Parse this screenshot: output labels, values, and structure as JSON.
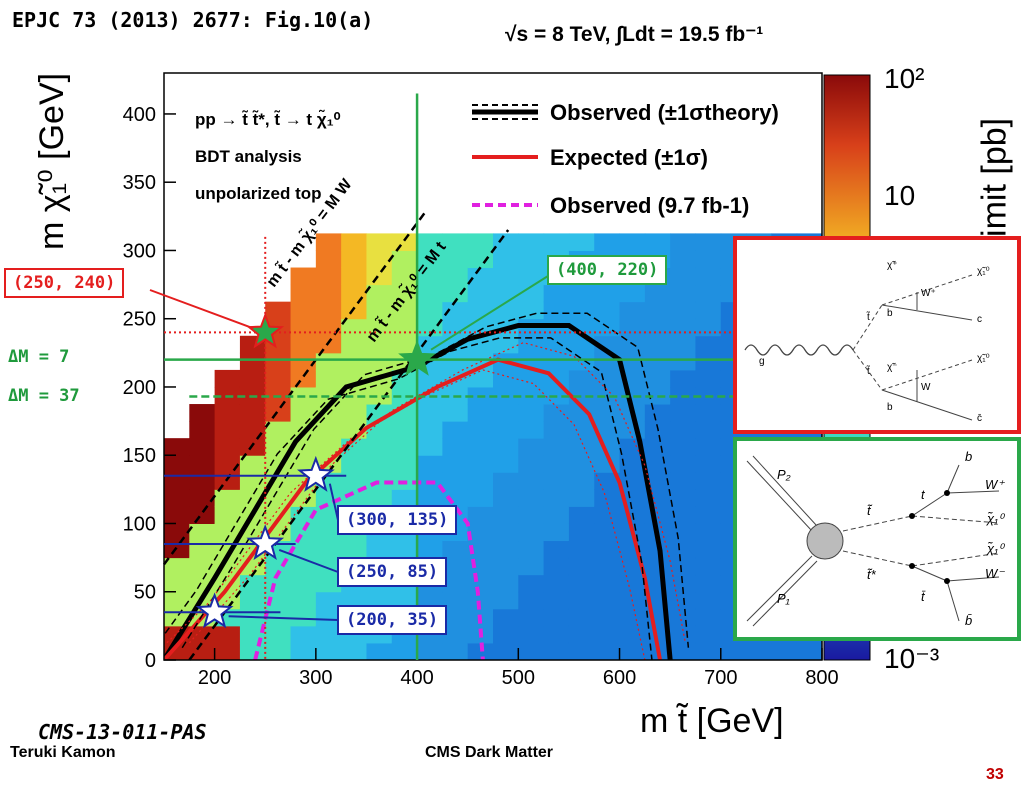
{
  "slide": {
    "reference": "EPJC 73 (2013) 2677: Fig.10(a)",
    "energy": "√s = 8 TeV, ∫Ldt = 19.5 fb⁻¹",
    "paper": "CMS-13-011-PAS",
    "author": "Teruki Kamon",
    "footer": "CMS Dark Matter",
    "page": "33"
  },
  "chart_data": {
    "type": "heatmap",
    "xlabel": "m t̃ [GeV]",
    "ylabel": "m χ̃₁⁰ [GeV]",
    "zlabel": "limit [pb]",
    "xlim": [
      150,
      800
    ],
    "ylim": [
      0,
      430
    ],
    "xticks": [
      "200",
      "300",
      "400",
      "500",
      "600",
      "700",
      "800"
    ],
    "yticks": [
      "0",
      "50",
      "100",
      "150",
      "200",
      "250",
      "300",
      "350",
      "400"
    ],
    "zscale": "log",
    "zticks": [
      "10²",
      "10",
      "10⁻³"
    ],
    "process": "pp → t̃ t̃*, t̃ → t χ̃₁⁰",
    "analysis": "BDT analysis",
    "polarization": "unpolarized top",
    "diagonals": [
      "m t̃ - m χ̃₁⁰ = M W",
      "m t̃ - m χ̃₁⁰ = M t"
    ],
    "legend": [
      {
        "label": "Observed (±1σtheory)",
        "color": "#000000",
        "style": "solid-thick+dashed"
      },
      {
        "label": "Expected (±1σ)",
        "color": "#e41e1e",
        "style": "solid+dotted"
      },
      {
        "label": "Observed (9.7 fb-1)",
        "color": "#e020e0",
        "style": "dashed"
      }
    ],
    "benchmark_points": [
      {
        "label": "(250, 240)",
        "x": 250,
        "y": 240,
        "color": "#2aa84a"
      },
      {
        "label": "(400, 220)",
        "x": 400,
        "y": 220,
        "color": "#2aa84a"
      },
      {
        "label": "(300, 135)",
        "x": 300,
        "y": 135,
        "color": "#ffffff"
      },
      {
        "label": "(250, 85)",
        "x": 250,
        "y": 85,
        "color": "#ffffff"
      },
      {
        "label": "(200, 35)",
        "x": 200,
        "y": 35,
        "color": "#ffffff"
      }
    ],
    "delta_m_labels": [
      "ΔM = 7",
      "ΔM = 37"
    ],
    "series": [
      {
        "name": "Observed (±1σtheory)",
        "x": [
          150,
          200,
          280,
          330,
          400,
          450,
          500,
          550,
          600,
          620,
          640,
          650
        ],
        "values": [
          0,
          60,
          160,
          200,
          215,
          235,
          245,
          245,
          220,
          160,
          80,
          0
        ]
      },
      {
        "name": "Expected (±1σ)",
        "x": [
          150,
          210,
          290,
          350,
          420,
          480,
          530,
          570,
          600,
          625,
          640
        ],
        "values": [
          0,
          50,
          130,
          170,
          200,
          220,
          210,
          180,
          130,
          60,
          0
        ]
      },
      {
        "name": "Observed (9.7 fb-1)",
        "x": [
          240,
          260,
          300,
          360,
          420,
          450,
          460,
          465
        ],
        "values": [
          0,
          60,
          110,
          130,
          130,
          100,
          50,
          0
        ]
      }
    ]
  },
  "diagrams": {
    "top": {
      "labels": [
        "χ̃⁺",
        "χ̃₁⁰",
        "W⁺",
        "t̃",
        "b",
        "c",
        "g",
        "t̃",
        "χ̃⁻",
        "χ̃₁⁰",
        "W",
        "b",
        "c̄"
      ]
    },
    "bottom": {
      "labels": [
        "P₂",
        "P₁",
        "t̃",
        "t̃*",
        "t",
        "t̄",
        "b",
        "W⁺",
        "χ̃₁⁰",
        "χ̃₁⁰",
        "W⁻",
        "b̄"
      ]
    }
  },
  "colors": {
    "red": "#e41e1e",
    "green": "#2aa84a",
    "blue": "#1a2aa6",
    "magenta": "#e020e0"
  }
}
